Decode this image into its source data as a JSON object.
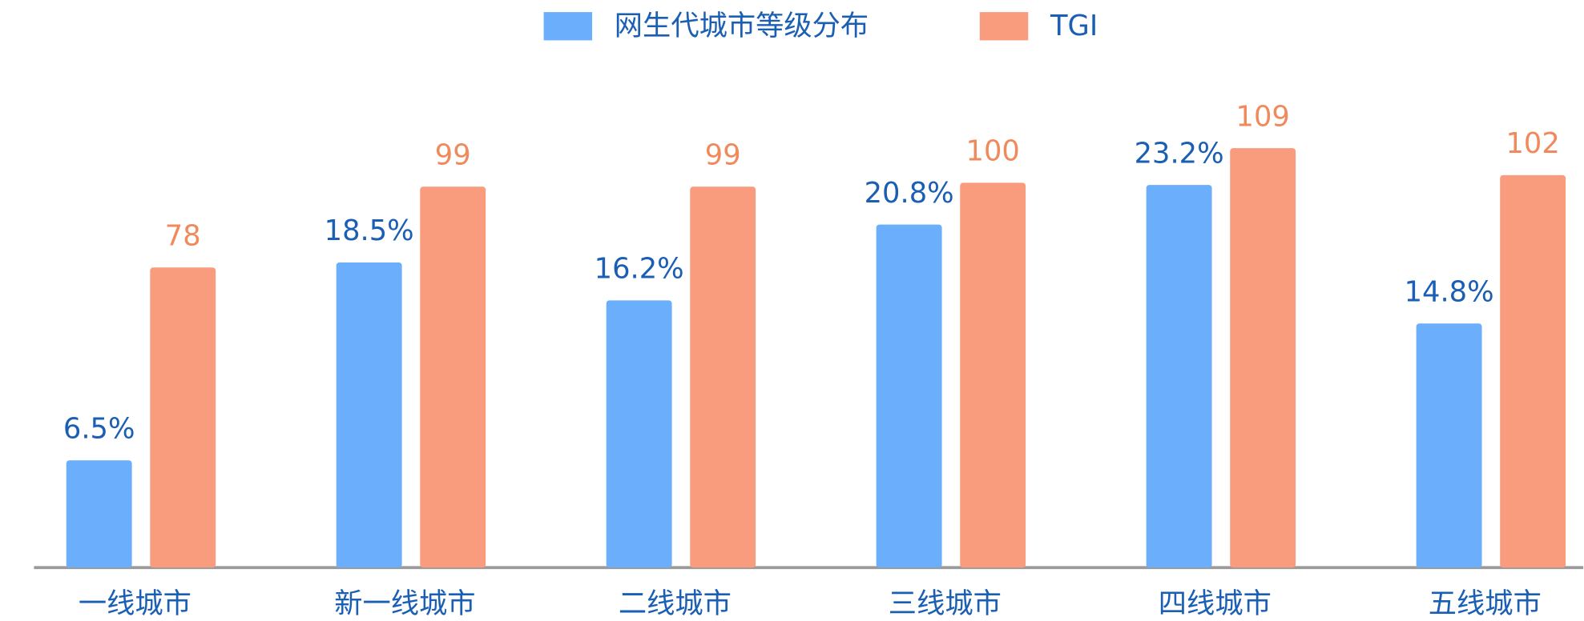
{
  "chart_data": {
    "type": "bar",
    "categories": [
      "一线城市",
      "新一线城市",
      "二线城市",
      "三线城市",
      "四线城市",
      "五线城市"
    ],
    "series": [
      {
        "name": "网生代城市等级分布",
        "color": "#6aaefc",
        "label_color": "#1a5fb4",
        "values": [
          6.5,
          18.5,
          16.2,
          20.8,
          23.2,
          14.8
        ],
        "value_labels": [
          "6.5%",
          "18.5%",
          "16.2%",
          "20.8%",
          "23.2%",
          "14.8%"
        ]
      },
      {
        "name": "TGI",
        "color": "#f99b7d",
        "label_color": "#f08a5d",
        "axis": "y2",
        "values": [
          78,
          99,
          99,
          100,
          109,
          102
        ]
      }
    ],
    "ylim": [
      0,
      28
    ],
    "y2lim": [
      0,
      120
    ],
    "legend": "top"
  }
}
